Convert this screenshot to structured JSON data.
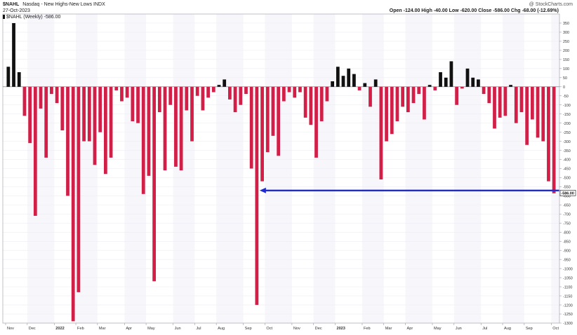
{
  "header": {
    "symbol": "$NAHL",
    "description": "Nasdaq - New Highs-New Lows INDX",
    "credit": "@ StockCharts.com",
    "date": "27-Oct-2023",
    "ohlc": "Open -124.00  High -40.00  Low -620.00  Close -586.00  Chg -68.00 (-12.69%)",
    "series_label": "$NAHL (Weekly) -586.00"
  },
  "colors": {
    "positive": "#111111",
    "negative": "#d21f47",
    "arrow": "#1f2bd0",
    "grid": "#ececf3",
    "band": "#f7f7fb"
  },
  "chart_data": {
    "type": "bar",
    "ylim": [
      -1300,
      400
    ],
    "y_ticks": [
      350,
      300,
      250,
      200,
      150,
      100,
      50,
      0,
      -50,
      -100,
      -150,
      -200,
      -250,
      -300,
      -350,
      -400,
      -450,
      -500,
      -550,
      -600,
      -650,
      -700,
      -750,
      -800,
      -850,
      -900,
      -950,
      -1000,
      -1050,
      -1100,
      -1150,
      -1200,
      -1250,
      -1300
    ],
    "x_tick_labels": [
      "Nov",
      "Dec",
      "2022",
      "Feb",
      "Mar",
      "Apr",
      "May",
      "Jun",
      "Jul",
      "Aug",
      "Sep",
      "Oct",
      "Nov",
      "Dec",
      "2023",
      "Feb",
      "Mar",
      "Apr",
      "May",
      "Jun",
      "Jul",
      "Aug",
      "Sep",
      "Oct"
    ],
    "x_tick_positions": [
      0,
      4,
      9,
      13,
      17,
      22,
      26,
      31,
      35,
      39,
      44,
      48,
      53,
      57,
      61,
      66,
      70,
      74,
      79,
      83,
      88,
      92,
      96,
      101
    ],
    "values": [
      110,
      350,
      80,
      -160,
      -310,
      -710,
      -120,
      -390,
      -40,
      -90,
      -240,
      -600,
      -1290,
      -1130,
      -300,
      -300,
      -430,
      -250,
      -480,
      -390,
      -20,
      -80,
      -60,
      -190,
      -200,
      -590,
      -490,
      -1070,
      -140,
      -460,
      -100,
      -440,
      -460,
      -130,
      -300,
      -50,
      -130,
      -60,
      -30,
      10,
      40,
      -70,
      -140,
      -100,
      -40,
      -450,
      -1200,
      -520,
      -360,
      -270,
      -380,
      -80,
      -30,
      -60,
      -30,
      -170,
      -210,
      -390,
      -190,
      -80,
      30,
      110,
      60,
      100,
      70,
      -20,
      20,
      -110,
      40,
      -510,
      -300,
      -260,
      -190,
      -110,
      -140,
      -90,
      -40,
      -180,
      10,
      -20,
      80,
      50,
      140,
      -100,
      -10,
      100,
      50,
      40,
      -40,
      -90,
      -230,
      -170,
      -160,
      10,
      -200,
      -140,
      -320,
      -180,
      -280,
      -300,
      -520,
      -586
    ],
    "last_value_label": "-586.00",
    "annotation": {
      "type": "arrow",
      "value": -586,
      "from_index": 103,
      "to_index": 46
    }
  }
}
